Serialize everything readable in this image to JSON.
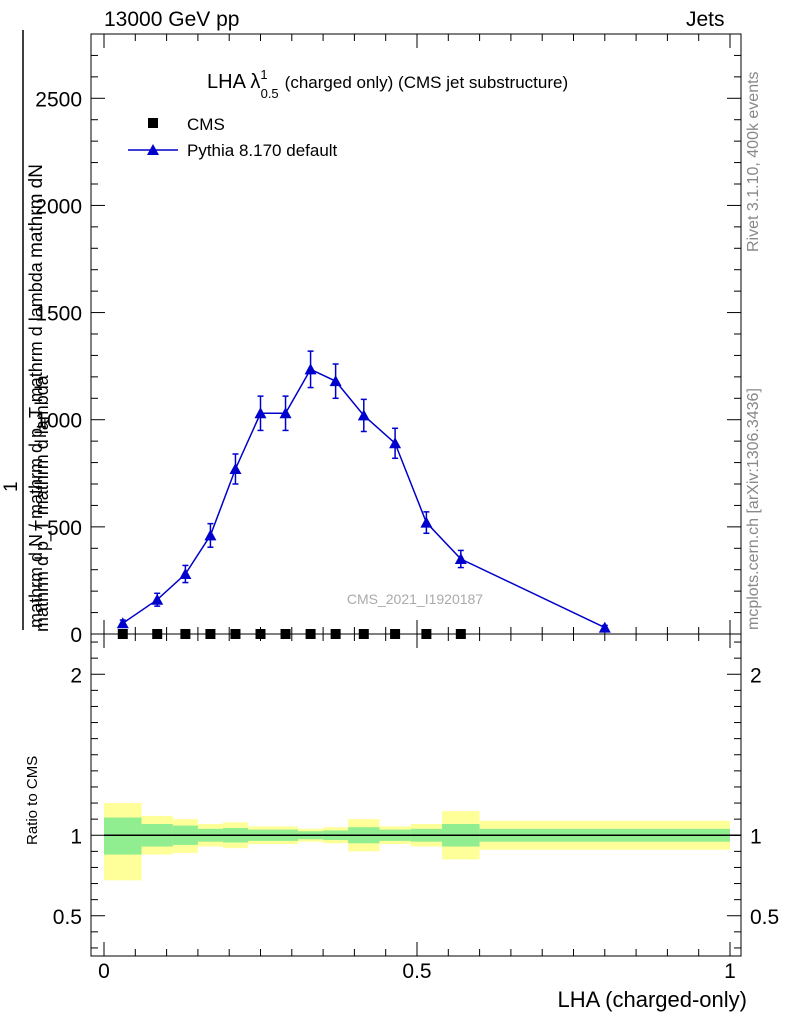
{
  "header": {
    "left": "13000 GeV pp",
    "right": "Jets"
  },
  "side_labels": {
    "rivet": "Rivet 3.1.10,  400k events",
    "mcplots": "mcplots.cern.ch [arXiv:1306.3436]"
  },
  "watermark": "CMS_2021_I1920187",
  "colors": {
    "mc": "#0000cc",
    "band_inner": "#90ee90",
    "band_outer": "#ffff99"
  },
  "chart_data": [
    {
      "type": "line",
      "title_main": "LHA λ",
      "title_sup": "1",
      "title_sub": "0.5",
      "title_rest": "(charged only) (CMS jet substructure)",
      "ylabel_top": "mathrm dN",
      "ylabel_top2": "mathrm d p_T mathrm d lambda",
      "ylabel_bottom": "mathrm d N / mathrm d p_T mathrm d lambda",
      "ylabel_bottom_num": "1",
      "xlim": [
        0,
        1
      ],
      "ylim": [
        0,
        2800
      ],
      "yticks": [
        "0",
        "500",
        "1000",
        "1500",
        "2000",
        "2500"
      ],
      "yticks_v": [
        0,
        500,
        1000,
        1500,
        2000,
        2500
      ],
      "legend": [
        {
          "label": "CMS"
        },
        {
          "label": "Pythia 8.170 default"
        }
      ],
      "series": [
        {
          "name": "CMS",
          "x": [
            0.03,
            0.085,
            0.13,
            0.17,
            0.21,
            0.25,
            0.29,
            0.33,
            0.37,
            0.415,
            0.465,
            0.515,
            0.57
          ],
          "values": [
            0,
            0,
            0,
            0,
            0,
            0,
            0,
            0,
            0,
            0,
            0,
            0,
            0
          ]
        },
        {
          "name": "Pythia 8.170 default",
          "x": [
            0.03,
            0.085,
            0.13,
            0.17,
            0.21,
            0.25,
            0.29,
            0.33,
            0.37,
            0.415,
            0.465,
            0.515,
            0.57,
            0.8
          ],
          "values": [
            50,
            160,
            280,
            460,
            770,
            1030,
            1030,
            1235,
            1180,
            1020,
            890,
            520,
            350,
            30
          ],
          "err": [
            15,
            30,
            40,
            55,
            70,
            80,
            80,
            85,
            80,
            75,
            70,
            50,
            40,
            10
          ]
        }
      ]
    },
    {
      "type": "area",
      "ylabel": "Ratio to CMS",
      "xlabel": "LHA (charged-only)",
      "xlim": [
        0,
        1
      ],
      "ylim": [
        0.25,
        2.25
      ],
      "xticks": [
        "0",
        "0.5",
        "1"
      ],
      "xticks_v": [
        0,
        0.5,
        1
      ],
      "yticks": [
        "0.5",
        "1",
        "2"
      ],
      "yticks_v": [
        0.5,
        1,
        2
      ],
      "bin_edges": [
        0,
        0.06,
        0.11,
        0.15,
        0.19,
        0.23,
        0.27,
        0.31,
        0.35,
        0.39,
        0.44,
        0.49,
        0.54,
        0.6,
        1.0
      ],
      "inner_band": [
        [
          0.88,
          1.11
        ],
        [
          0.93,
          1.07
        ],
        [
          0.94,
          1.06
        ],
        [
          0.96,
          1.04
        ],
        [
          0.955,
          1.045
        ],
        [
          0.965,
          1.035
        ],
        [
          0.965,
          1.035
        ],
        [
          0.975,
          1.025
        ],
        [
          0.97,
          1.03
        ],
        [
          0.95,
          1.05
        ],
        [
          0.965,
          1.035
        ],
        [
          0.96,
          1.04
        ],
        [
          0.93,
          1.07
        ],
        [
          0.96,
          1.04
        ]
      ],
      "outer_band": [
        [
          0.72,
          1.2
        ],
        [
          0.88,
          1.12
        ],
        [
          0.89,
          1.1
        ],
        [
          0.93,
          1.07
        ],
        [
          0.92,
          1.08
        ],
        [
          0.945,
          1.055
        ],
        [
          0.945,
          1.055
        ],
        [
          0.96,
          1.04
        ],
        [
          0.95,
          1.05
        ],
        [
          0.9,
          1.1
        ],
        [
          0.945,
          1.055
        ],
        [
          0.93,
          1.07
        ],
        [
          0.85,
          1.15
        ],
        [
          0.91,
          1.09
        ]
      ],
      "ratio_line": 1
    }
  ]
}
